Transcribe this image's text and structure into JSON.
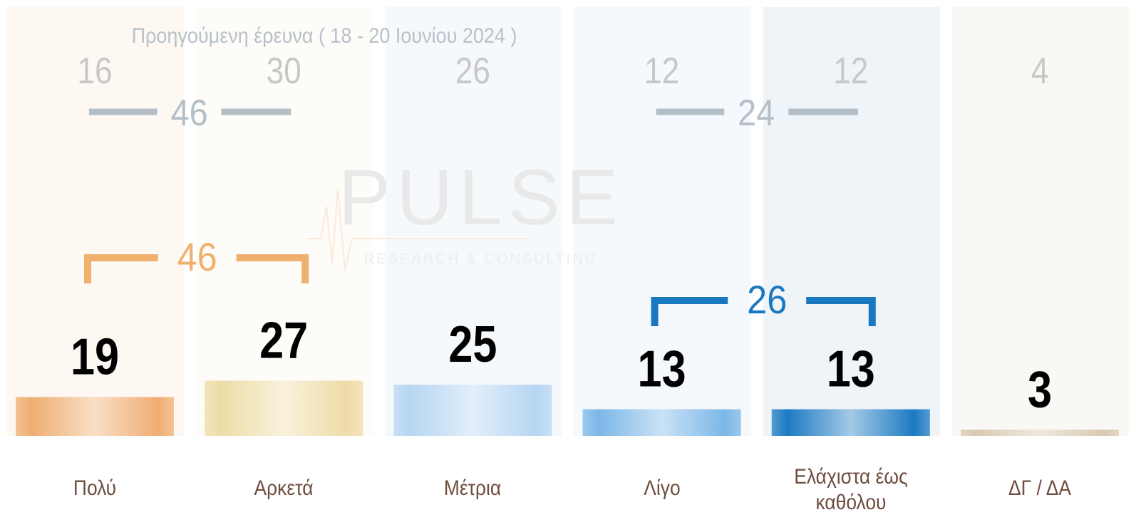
{
  "chart_data": {
    "type": "bar",
    "categories": [
      "Πολύ",
      "Αρκετά",
      "Μέτρια",
      "Λίγο",
      "Ελάχιστα έως καθόλου",
      "ΔΓ / ΔΑ"
    ],
    "series": [
      {
        "name": "Προηγούμενη έρευνα ( 18 - 20 Ιουνίου 2024 )",
        "color": "#c8c8c8",
        "values": [
          16,
          30,
          26,
          12,
          12,
          4
        ]
      }
    ],
    "values": [
      19,
      27,
      25,
      13,
      13,
      3
    ],
    "colors": [
      "#efae72",
      "#eedca8",
      "#b6d6f2",
      "#7bb7e8",
      "#1c7ac2",
      "#d9c9b1"
    ],
    "group_values": [
      46,
      26
    ],
    "group_colors": [
      "#f0b16f",
      "#1a78c0"
    ],
    "previous_group_values": [
      46,
      24
    ],
    "previous_group_color": "#b3bec6",
    "watermark": {
      "title": "PULSE",
      "subtitle": "RESEARCH & CONSULTING"
    }
  }
}
